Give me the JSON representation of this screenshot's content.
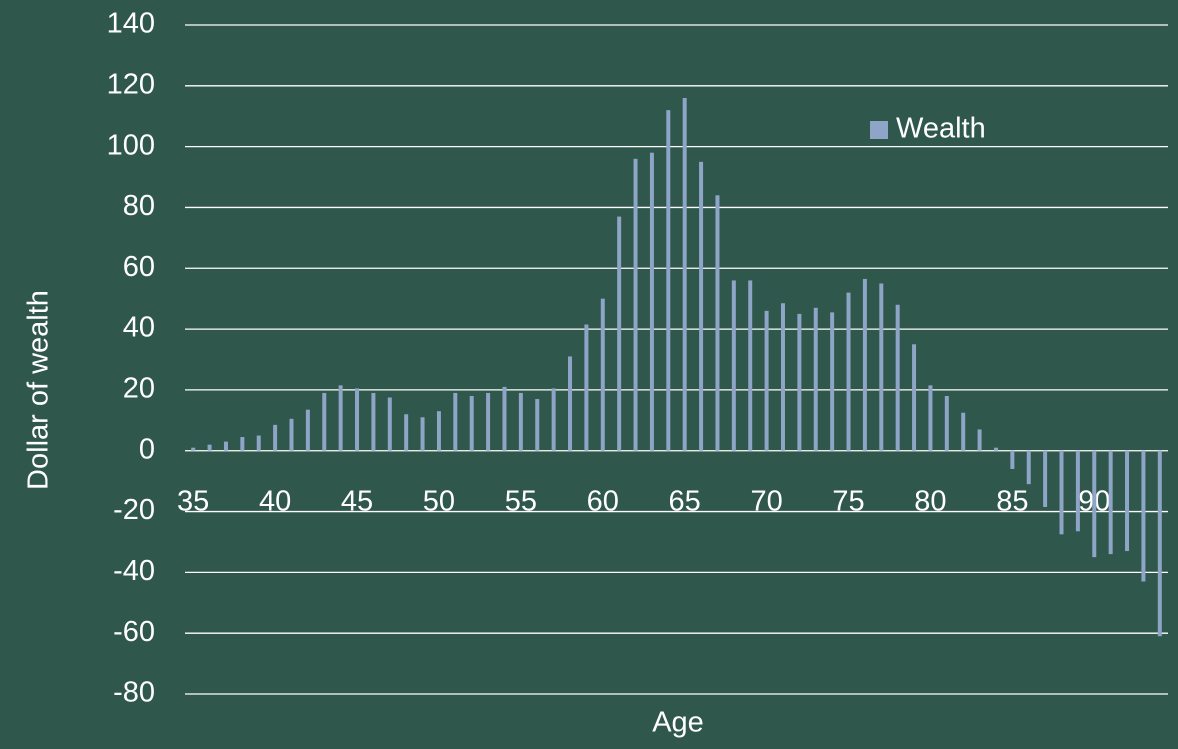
{
  "chart_data": {
    "type": "bar",
    "x_label": "Age",
    "y_label": "Dollar of wealth",
    "categories": [
      "35",
      null,
      null,
      null,
      null,
      "40",
      null,
      null,
      null,
      null,
      "45",
      null,
      null,
      null,
      null,
      "50",
      null,
      null,
      null,
      null,
      "55",
      null,
      null,
      null,
      null,
      "60",
      null,
      null,
      null,
      null,
      "65",
      null,
      null,
      null,
      null,
      "70",
      null,
      null,
      null,
      null,
      "75",
      null,
      null,
      null,
      null,
      "80",
      null,
      null,
      null,
      null,
      "85",
      null,
      null,
      null,
      null,
      "90",
      null,
      null,
      null,
      null
    ],
    "series": [
      {
        "name": "Wealth",
        "color": "#8ea5c8",
        "values": [
          1,
          2,
          3,
          4.5,
          5,
          8.5,
          10.5,
          13.5,
          19,
          21.5,
          20.5,
          19,
          17.5,
          12,
          11,
          13,
          19,
          18,
          19,
          21,
          19,
          17,
          20.5,
          31,
          41.5,
          50,
          77,
          96,
          98,
          112,
          116,
          95,
          84,
          56,
          56,
          46,
          48.5,
          45,
          47,
          45.5,
          52,
          56.5,
          55,
          48,
          35,
          21.5,
          18,
          12.5,
          7,
          1,
          -6,
          -11,
          -18.5,
          -27.5,
          -26.5,
          -35,
          -34,
          -33,
          -43,
          -61
        ]
      }
    ],
    "ylim": [
      -80,
      140
    ],
    "yticks": [
      -80,
      -60,
      -40,
      -20,
      0,
      20,
      40,
      60,
      80,
      100,
      120,
      140
    ],
    "grid": true,
    "legend": "upper right"
  }
}
